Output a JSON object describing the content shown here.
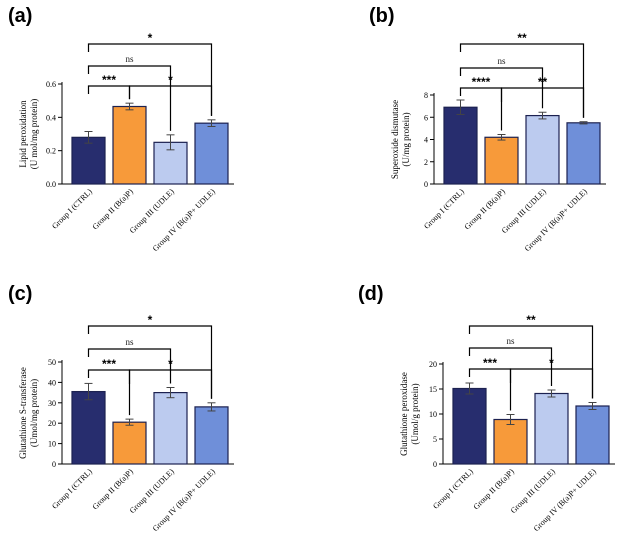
{
  "categories": [
    "Group I (CTRL)",
    "Group II (B(a)P)",
    "Group III (UDLE)",
    "Group IV (B(a)P+ UDLE)"
  ],
  "colors": {
    "bars": [
      "#272d6e",
      "#f79a3a",
      "#bccbef",
      "#6f8fd9"
    ],
    "bar_stroke": "#1c2150",
    "axis": "#000000",
    "bracket": "#000000"
  },
  "chart_data": [
    {
      "type": "bar",
      "panel_label": "(a)",
      "ylabel_line1": "Lipid peroxidation",
      "ylabel_line2": "(U mol/mg protein)",
      "ylim": [
        0,
        0.6
      ],
      "yticks": [
        "0.0",
        "0.2",
        "0.4",
        "0.6"
      ],
      "ytick_values": [
        0,
        0.2,
        0.4,
        0.6
      ],
      "values": [
        0.28,
        0.465,
        0.25,
        0.365
      ],
      "errors": [
        0.035,
        0.02,
        0.045,
        0.02
      ],
      "brackets": [
        {
          "from": 0,
          "to": 3,
          "label": "*"
        },
        {
          "from": 0,
          "to": 2,
          "label": "ns"
        },
        {
          "from": 0,
          "to": 1,
          "label": "***"
        },
        {
          "from": 1,
          "to": 3,
          "label": "*"
        }
      ]
    },
    {
      "type": "bar",
      "panel_label": "(b)",
      "ylabel_line1": "Superoxide dismutase",
      "ylabel_line2": "(U/mg protein)",
      "ylim": [
        0,
        8
      ],
      "yticks": [
        "0",
        "2",
        "4",
        "6",
        "8"
      ],
      "ytick_values": [
        0,
        2,
        4,
        6,
        8
      ],
      "values": [
        6.9,
        4.2,
        6.15,
        5.5
      ],
      "errors": [
        0.65,
        0.25,
        0.3,
        0.1
      ],
      "brackets": [
        {
          "from": 0,
          "to": 3,
          "label": "**"
        },
        {
          "from": 0,
          "to": 2,
          "label": "ns"
        },
        {
          "from": 0,
          "to": 1,
          "label": "****"
        },
        {
          "from": 1,
          "to": 3,
          "label": "**"
        }
      ]
    },
    {
      "type": "bar",
      "panel_label": "(c)",
      "ylabel_line1": "Glutathione S-transferase",
      "ylabel_line2": "(Umol/mg protein)",
      "ylim": [
        0,
        50
      ],
      "yticks": [
        "0",
        "10",
        "20",
        "30",
        "40",
        "50"
      ],
      "ytick_values": [
        0,
        10,
        20,
        30,
        40,
        50
      ],
      "values": [
        35.5,
        20.5,
        35.0,
        28.0
      ],
      "errors": [
        4.0,
        1.5,
        2.5,
        2.0
      ],
      "brackets": [
        {
          "from": 0,
          "to": 3,
          "label": "*"
        },
        {
          "from": 0,
          "to": 2,
          "label": "ns"
        },
        {
          "from": 0,
          "to": 1,
          "label": "***"
        },
        {
          "from": 1,
          "to": 3,
          "label": "*"
        }
      ]
    },
    {
      "type": "bar",
      "panel_label": "(d)",
      "ylabel_line1": "Glutathione peroxidase",
      "ylabel_line2": "(Umol/g protein)",
      "ylim": [
        0,
        20
      ],
      "yticks": [
        "0",
        "5",
        "10",
        "15",
        "20"
      ],
      "ytick_values": [
        0,
        5,
        10,
        15,
        20
      ],
      "values": [
        15.1,
        8.9,
        14.1,
        11.6
      ],
      "errors": [
        1.1,
        1.0,
        0.7,
        0.7
      ],
      "brackets": [
        {
          "from": 0,
          "to": 3,
          "label": "**"
        },
        {
          "from": 0,
          "to": 2,
          "label": "ns"
        },
        {
          "from": 0,
          "to": 1,
          "label": "***"
        },
        {
          "from": 1,
          "to": 3,
          "label": "*"
        }
      ]
    }
  ]
}
